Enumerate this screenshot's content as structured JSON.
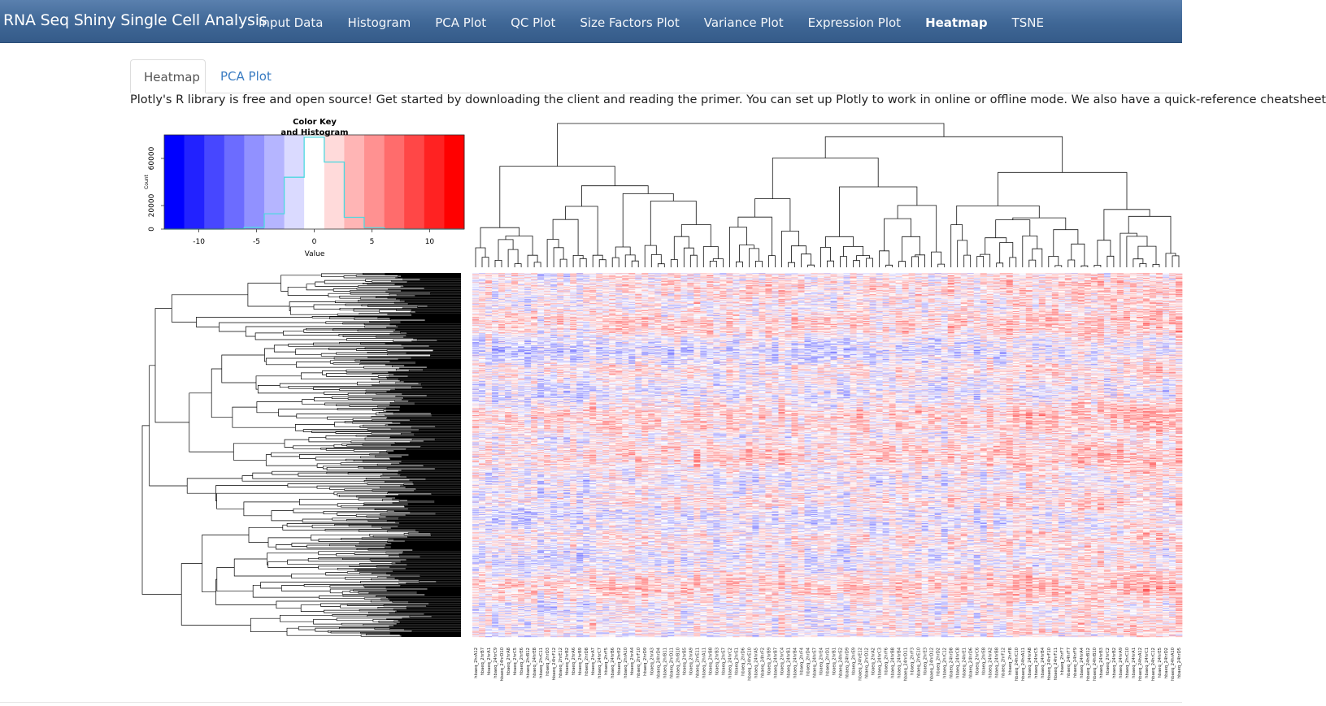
{
  "navbar": {
    "brand": "RNA Seq Shiny Single Cell Analysis",
    "items": [
      {
        "label": "Input Data"
      },
      {
        "label": "Histogram"
      },
      {
        "label": "PCA Plot"
      },
      {
        "label": "QC Plot"
      },
      {
        "label": "Size Factors Plot"
      },
      {
        "label": "Variance Plot"
      },
      {
        "label": "Expression Plot"
      },
      {
        "label": "Heatmap",
        "active": true
      },
      {
        "label": "TSNE"
      }
    ]
  },
  "tabs": [
    {
      "label": "Heatmap",
      "active": true
    },
    {
      "label": "PCA Plot",
      "active": false
    }
  ],
  "info_text": "Plotly's R library is free and open source! Get started by downloading the client and reading the primer. You can set up Plotly to work in online or offline mode. We also have a quick-reference cheatsheet",
  "colors": {
    "navbar": "#3f6796",
    "link": "#3a7cc2",
    "low": "#0000ff",
    "mid": "#ffffff",
    "high": "#ff0000",
    "histogram_line": "#4ed8e0"
  },
  "chart_data": {
    "type": "heatmap",
    "color_key": {
      "title": "Color Key",
      "subtitle": "and Histogram",
      "xlabel": "Value",
      "ylabel": "Count",
      "xlim": [
        -13,
        13
      ],
      "ylim": [
        0,
        80000
      ],
      "x_ticks": [
        -10,
        -5,
        0,
        5,
        10
      ],
      "y_ticks": [
        0,
        20000,
        60000
      ],
      "color_scale": [
        "blue",
        "white",
        "red"
      ],
      "histogram_bins": [
        -13,
        -11.27,
        -9.53,
        -7.8,
        -6.07,
        -4.33,
        -2.6,
        -0.87,
        0.87,
        2.6,
        4.33,
        6.07,
        7.8,
        9.53,
        11.27,
        13
      ],
      "histogram_counts": [
        0,
        0,
        0,
        200,
        1500,
        13000,
        44000,
        78000,
        57000,
        10000,
        1200,
        100,
        0,
        0,
        0
      ]
    },
    "column_labels": [
      "hbaeq_2hrA12",
      "hbaeq_2hrB7",
      "hbaeq_2hrA1",
      "hbaeq_24hrC9",
      "hbaeq_24hrD10",
      "hbaeq_2hrA8",
      "hbaeq_2hrC5",
      "hbaeq_2hrE6",
      "hbaeq_2hrB12",
      "hbaeq_24hrE8",
      "hbaeq_2hrC11",
      "hbaeq_2hrD3",
      "hbaeq_24hrF12",
      "hbaeq_2hrE12",
      "hbaeq_2hrB2",
      "hbaeq_2hrA6",
      "hbaeq_2hrB9",
      "hbaeq_2hrD8",
      "hbaeq_2hrA7",
      "hbaeq_24hrC7",
      "hbaeq_2hrF5",
      "hbaeq_24hrB6",
      "hbaeq_2hrE2",
      "hbaeq_2hrA10",
      "hbaeq_2hrA4",
      "hbaeq_2hrF10",
      "hbaeq_2hrD9",
      "hbaeq_2hrA3",
      "hbaeq_24hrD4",
      "hbaeq_2hrB11",
      "hbaeq_2hrD11",
      "hbaeq_2hrB10",
      "hbaeq_2hrB5",
      "hbaeq_2hrA9",
      "hbaeq_2hrE11",
      "hbaeq_2hrA11",
      "hbaeq_2hrB8",
      "hbaeq_2hrB3",
      "hbaeq_2hrE7",
      "hbaeq_24hrC2",
      "hbaeq_2hrE1",
      "hbaeq_2hrD6",
      "hbaeq_24hrE10",
      "hbaeq_24hrA5",
      "hbaeq_24hrF2",
      "hbaeq_2hrB9",
      "hbaeq_24hrB7",
      "hbaeq_2hrC4",
      "hbaeq_24hrB1",
      "hbaeq_24hrB4",
      "hbaeq_2hrF4",
      "hbaeq_2hrD4",
      "hbaeq_24hrE7",
      "hbaeq_2hrE4",
      "hbaeq_2hrD1",
      "hbaeq_2hrB1",
      "hbaeq_24hrE2",
      "hbaeq_24hrD9",
      "hbaeq_2hrE9",
      "hbaeq_24hrE12",
      "hbaeq_2hrD12",
      "hbaeq_2hrA2",
      "hbaeq_24hrC3",
      "hbaeq_2hrF6",
      "hbaeq_24hrB8",
      "hbaeq_24hrB4",
      "hbaeq_24hrD11",
      "hbaeq_2hrF3",
      "hbaeq_2hrE10",
      "hbaeq_2hrE3",
      "hbaeq_24hrD12",
      "hbaeq_2hrD2",
      "hbaeq_2hrC12",
      "hbaeq_24hrD8",
      "hbaeq_24hrC8",
      "hbaeq_24hrE1",
      "hbaeq_24hrD6",
      "hbaeq_2hrC6",
      "hbaeq_2hrE8",
      "hbaeq_24hrA2",
      "hbaeq_24hrB8",
      "hbaeq_2hrF12",
      "hbaeq_2hrF8",
      "hbaeq_24hrC10",
      "hbaeq_24hrA11",
      "hbaeq_24hrA8",
      "hbaeq_24hrC5",
      "hbaeq_24hrB4",
      "hbaeq_24hrF10",
      "hbaeq_24hrF11",
      "hbaeq_2hrF7",
      "hbaeq_24hrF7",
      "hbaeq_24hrF9",
      "hbaeq_24hrA4",
      "hbaeq_24hrB12",
      "hbaeq_24hrB10",
      "hbaeq_24hrB3",
      "hbaeq_2hrC2",
      "hbaeq_24hrB2",
      "hbaeq_24hrA9",
      "hbaeq_2hrC10",
      "hbaeq_24hrA1",
      "hbaeq_24hrA12",
      "hbaeq_24hrC1",
      "hbaeq_24hrC12",
      "hbaeq_24hrE5",
      "hbaeq_24hrD2",
      "hbaeq_24hrA10",
      "hbaeq_24hrD5"
    ],
    "n_rows": 600,
    "dendrogram": {
      "rows": true,
      "columns": true
    }
  }
}
